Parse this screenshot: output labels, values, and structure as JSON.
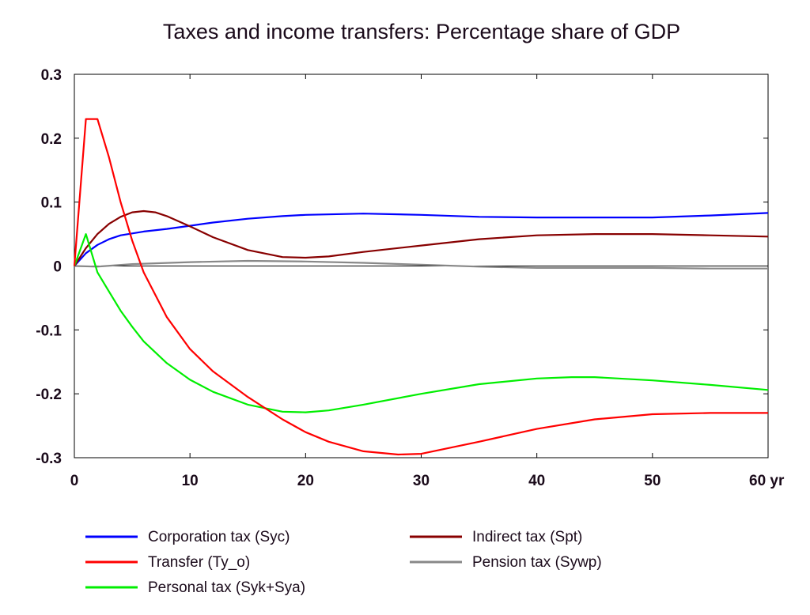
{
  "chart_data": {
    "type": "line",
    "title": "Taxes and income transfers: Percentage share of GDP",
    "xlabel": "",
    "ylabel": "",
    "x_unit": "yr",
    "xlim": [
      0,
      60
    ],
    "ylim": [
      -0.3,
      0.3
    ],
    "x_ticks": [
      0,
      10,
      20,
      30,
      40,
      50,
      60
    ],
    "x_tick_labels": [
      "0",
      "10",
      "20",
      "30",
      "40",
      "50",
      "60 yr"
    ],
    "y_ticks": [
      0.3,
      0.2,
      0.1,
      0,
      -0.1,
      -0.2,
      -0.3
    ],
    "y_tick_labels": [
      "0.3",
      "0.2",
      "0.1",
      "0",
      "-0.1",
      "-0.2",
      "-0.3"
    ],
    "grid": false,
    "zero_line": true,
    "legend_position": "bottom",
    "series": [
      {
        "name": "Corporation tax (Syc)",
        "color": "#0000ff",
        "points": [
          [
            0,
            0
          ],
          [
            1,
            0.02
          ],
          [
            2,
            0.033
          ],
          [
            3,
            0.042
          ],
          [
            4,
            0.048
          ],
          [
            5,
            0.051
          ],
          [
            6,
            0.054
          ],
          [
            8,
            0.058
          ],
          [
            10,
            0.063
          ],
          [
            12,
            0.068
          ],
          [
            15,
            0.074
          ],
          [
            18,
            0.078
          ],
          [
            20,
            0.08
          ],
          [
            25,
            0.082
          ],
          [
            30,
            0.08
          ],
          [
            35,
            0.077
          ],
          [
            40,
            0.076
          ],
          [
            45,
            0.076
          ],
          [
            50,
            0.076
          ],
          [
            55,
            0.079
          ],
          [
            60,
            0.083
          ]
        ]
      },
      {
        "name": "Transfer (Ty_o)",
        "color": "#ff0000",
        "points": [
          [
            0,
            0
          ],
          [
            1,
            0.23
          ],
          [
            2,
            0.23
          ],
          [
            3,
            0.17
          ],
          [
            4,
            0.1
          ],
          [
            5,
            0.04
          ],
          [
            6,
            -0.01
          ],
          [
            8,
            -0.08
          ],
          [
            10,
            -0.13
          ],
          [
            12,
            -0.165
          ],
          [
            15,
            -0.205
          ],
          [
            18,
            -0.24
          ],
          [
            20,
            -0.26
          ],
          [
            22,
            -0.275
          ],
          [
            25,
            -0.29
          ],
          [
            28,
            -0.295
          ],
          [
            30,
            -0.294
          ],
          [
            35,
            -0.275
          ],
          [
            40,
            -0.255
          ],
          [
            45,
            -0.24
          ],
          [
            50,
            -0.232
          ],
          [
            55,
            -0.23
          ],
          [
            60,
            -0.23
          ]
        ]
      },
      {
        "name": "Personal tax (Syk+Sya)",
        "color": "#00ee00",
        "points": [
          [
            0,
            0
          ],
          [
            1,
            0.05
          ],
          [
            1.5,
            0.02
          ],
          [
            2,
            -0.01
          ],
          [
            3,
            -0.04
          ],
          [
            4,
            -0.07
          ],
          [
            5,
            -0.095
          ],
          [
            6,
            -0.118
          ],
          [
            8,
            -0.152
          ],
          [
            10,
            -0.178
          ],
          [
            12,
            -0.197
          ],
          [
            15,
            -0.217
          ],
          [
            18,
            -0.228
          ],
          [
            20,
            -0.229
          ],
          [
            22,
            -0.226
          ],
          [
            25,
            -0.217
          ],
          [
            30,
            -0.2
          ],
          [
            35,
            -0.185
          ],
          [
            40,
            -0.176
          ],
          [
            43,
            -0.174
          ],
          [
            45,
            -0.174
          ],
          [
            50,
            -0.179
          ],
          [
            55,
            -0.186
          ],
          [
            60,
            -0.194
          ]
        ]
      },
      {
        "name": "Indirect tax (Spt)",
        "color": "#880000",
        "points": [
          [
            0,
            0
          ],
          [
            1,
            0.028
          ],
          [
            2,
            0.05
          ],
          [
            3,
            0.066
          ],
          [
            4,
            0.077
          ],
          [
            5,
            0.084
          ],
          [
            6,
            0.086
          ],
          [
            7,
            0.084
          ],
          [
            8,
            0.078
          ],
          [
            10,
            0.062
          ],
          [
            12,
            0.045
          ],
          [
            15,
            0.025
          ],
          [
            18,
            0.014
          ],
          [
            20,
            0.013
          ],
          [
            22,
            0.015
          ],
          [
            25,
            0.022
          ],
          [
            30,
            0.032
          ],
          [
            35,
            0.042
          ],
          [
            40,
            0.048
          ],
          [
            45,
            0.05
          ],
          [
            50,
            0.05
          ],
          [
            55,
            0.048
          ],
          [
            60,
            0.046
          ]
        ]
      },
      {
        "name": "Pension tax (Sywp)",
        "color": "#888888",
        "points": [
          [
            0,
            0
          ],
          [
            2,
            -0.001
          ],
          [
            5,
            0.003
          ],
          [
            10,
            0.006
          ],
          [
            15,
            0.008
          ],
          [
            20,
            0.007
          ],
          [
            25,
            0.005
          ],
          [
            30,
            0.002
          ],
          [
            35,
            -0.001
          ],
          [
            40,
            -0.003
          ],
          [
            45,
            -0.003
          ],
          [
            50,
            -0.003
          ],
          [
            55,
            -0.004
          ],
          [
            60,
            -0.004
          ]
        ]
      }
    ],
    "legend": [
      {
        "series": 0,
        "label": "Corporation tax (Syc)"
      },
      {
        "series": 3,
        "label": "Indirect tax (Spt)"
      },
      {
        "series": 1,
        "label": "Transfer (Ty_o)"
      },
      {
        "series": 4,
        "label": "Pension tax (Sywp)"
      },
      {
        "series": 2,
        "label": "Personal tax (Syk+Sya)"
      }
    ]
  }
}
